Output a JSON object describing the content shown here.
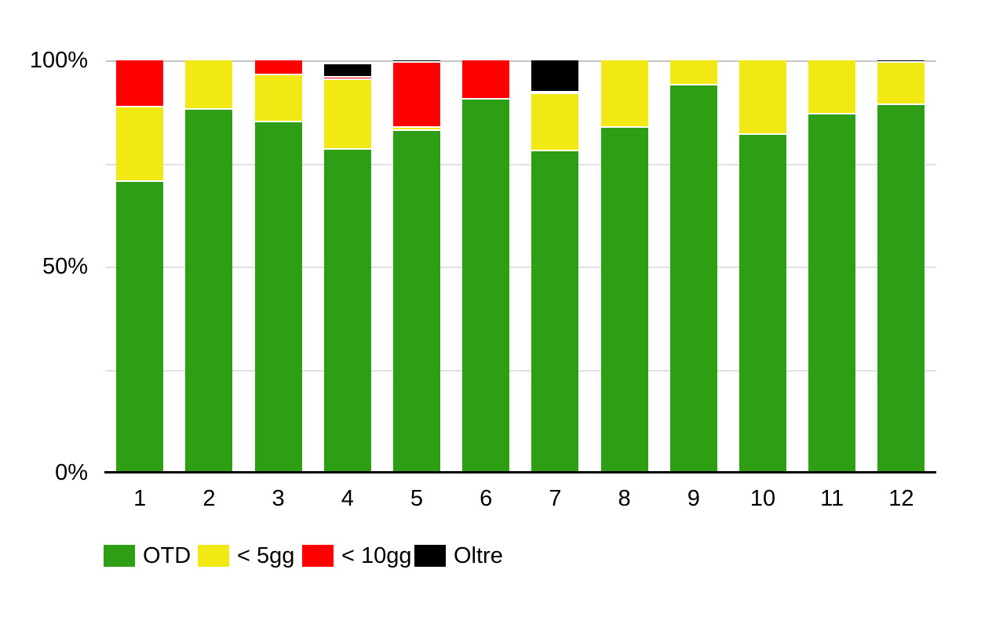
{
  "chart_data": {
    "type": "bar",
    "stacked": true,
    "title": "",
    "xlabel": "",
    "ylabel": "",
    "ylim": [
      0,
      100
    ],
    "grid": true,
    "legend_position": "bottom",
    "categories": [
      "1",
      "2",
      "3",
      "4",
      "5",
      "6",
      "7",
      "8",
      "9",
      "10",
      "11",
      "12"
    ],
    "series": [
      {
        "name": "OTD",
        "color": "#2e9e14",
        "values": [
          70.5,
          88.0,
          85.0,
          78.3,
          82.9,
          90.5,
          77.9,
          83.7,
          94.0,
          81.9,
          86.9,
          89.2
        ]
      },
      {
        "name": "< 5gg",
        "color": "#f2e813",
        "values": [
          18.1,
          12.0,
          11.4,
          17.0,
          0.7,
          0,
          13.9,
          16.3,
          6.0,
          18.1,
          13.1,
          10.2
        ]
      },
      {
        "name": "< 10gg",
        "color": "#ff0000",
        "values": [
          11.4,
          0,
          3.6,
          0.5,
          15.8,
          9.5,
          0.4,
          0,
          0,
          0,
          0,
          0
        ]
      },
      {
        "name": "Oltre",
        "color": "#000000",
        "values": [
          0,
          0,
          0,
          3.3,
          0.6,
          0,
          7.8,
          0,
          0,
          0,
          0,
          0.6
        ]
      }
    ],
    "y_axis": {
      "ticks": [
        {
          "label": "100%",
          "value": 100
        },
        {
          "label": "50%",
          "value": 50
        },
        {
          "label": "0%",
          "value": 0
        }
      ],
      "gridline_values": [
        100,
        75,
        50,
        25
      ]
    }
  },
  "colors": {
    "gridline": "#e0e0e0",
    "gridline_top": "#c4c4c4",
    "axis": "#000000",
    "background": "#ffffff"
  },
  "legend": {
    "items": [
      {
        "label": "OTD",
        "color": "#2e9e14"
      },
      {
        "label": "< 5gg",
        "color": "#f2e813"
      },
      {
        "label": "< 10gg",
        "color": "#ff0000"
      },
      {
        "label": "Oltre",
        "color": "#000000"
      }
    ]
  }
}
